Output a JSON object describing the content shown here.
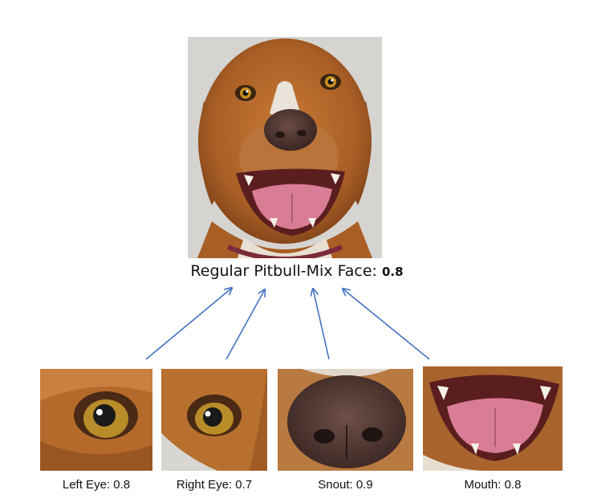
{
  "face": {
    "label": "Regular Pitbull-Mix Face:",
    "score": "0.8"
  },
  "parts": [
    {
      "label": "Left Eye: 0.8"
    },
    {
      "label": "Right Eye: 0.7"
    },
    {
      "label": "Snout: 0.9"
    },
    {
      "label": "Mouth: 0.8"
    }
  ],
  "colors": {
    "arrow": "#4472C4",
    "fur": "#B5692A",
    "fur_dark": "#7A3F18",
    "nose": "#4A3530",
    "tongue": "#D97C96",
    "background": "#D6D4D0"
  }
}
